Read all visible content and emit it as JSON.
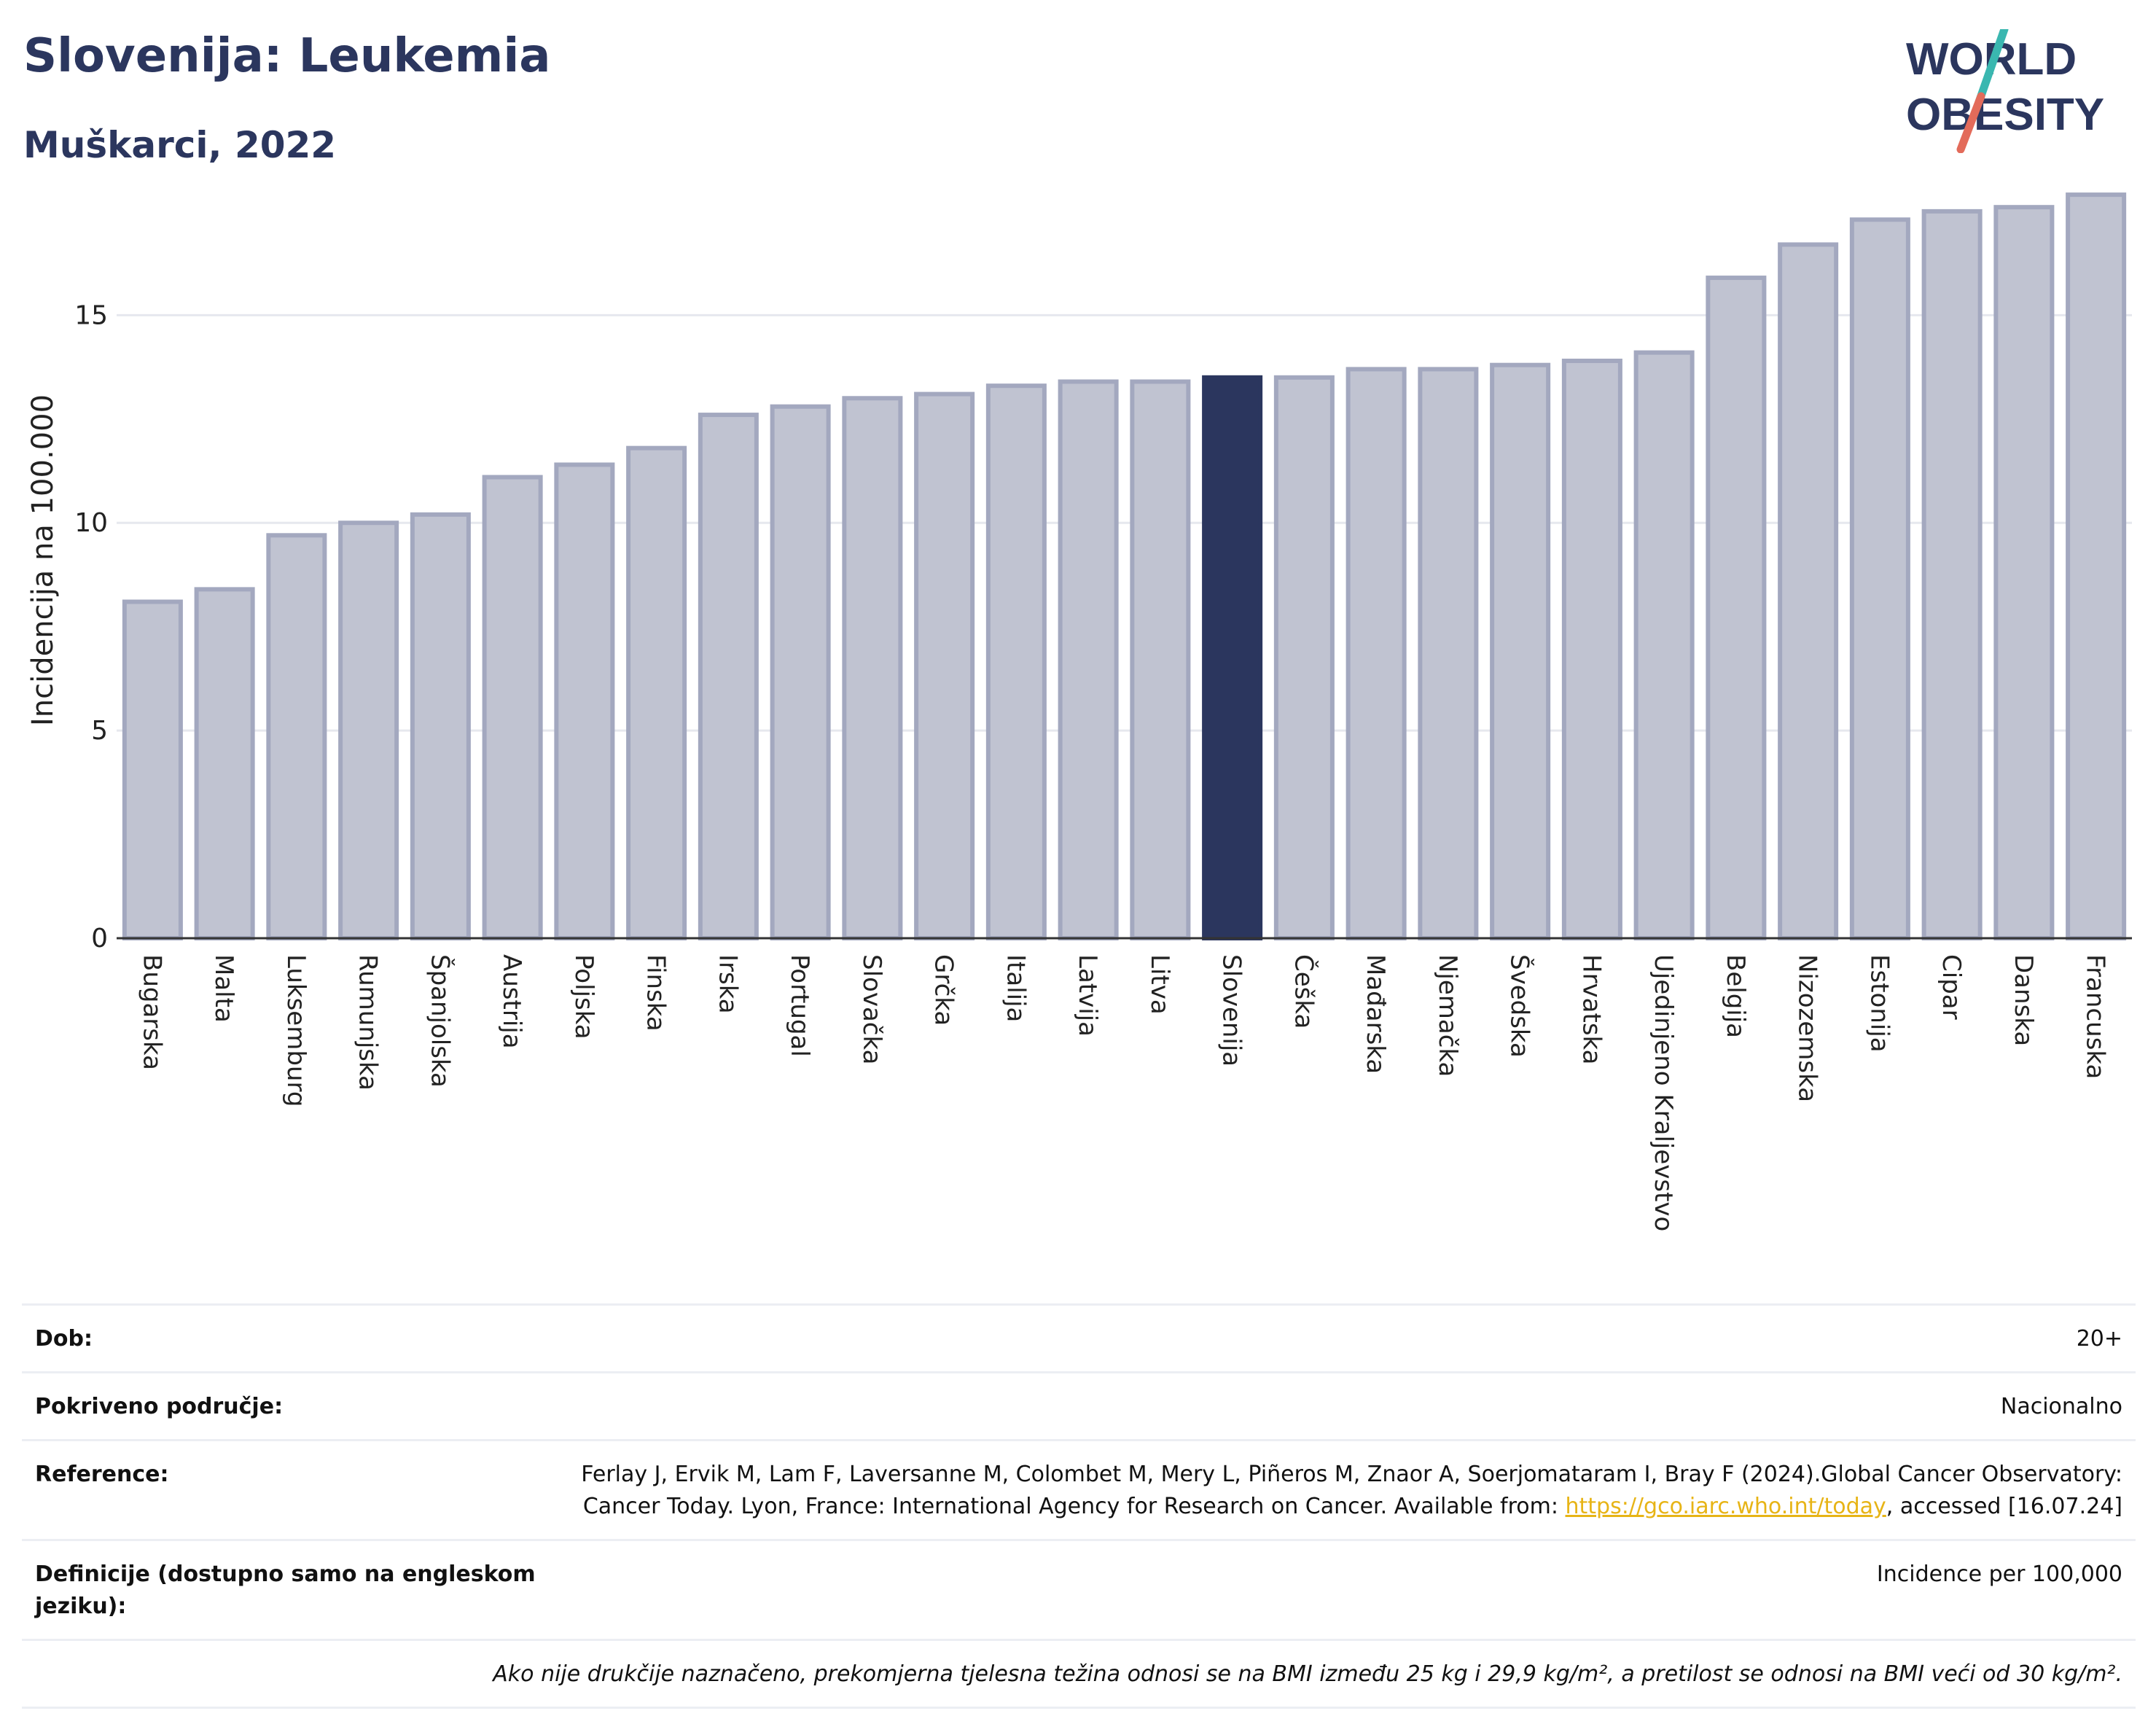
{
  "header": {
    "title": "Slovenija: Leukemia",
    "subtitle": "Muškarci, 2022"
  },
  "logo": {
    "text_line1": "WORLD",
    "text_line2": "OBESITY",
    "colors": {
      "text": "#2b365e",
      "slash_top": "#3ab7b0",
      "slash_bottom": "#e36b5a"
    }
  },
  "colors": {
    "bar": "#c0c3d1",
    "bar_border": "#a3a8bf",
    "highlight": "#2b365e",
    "grid": "#e6e8ee",
    "axis": "#333333"
  },
  "chart_data": {
    "type": "bar",
    "ylabel": "Incidencija na 100.000",
    "ylim": [
      0,
      18.2
    ],
    "yticks": [
      0,
      5,
      10,
      15
    ],
    "grid": true,
    "highlight": "Slovenija",
    "categories": [
      "Bugarska",
      "Malta",
      "Luksemburg",
      "Rumunjska",
      "Španjolska",
      "Austrija",
      "Poljska",
      "Finska",
      "Irska",
      "Portugal",
      "Slovačka",
      "Grčka",
      "Italija",
      "Latvija",
      "Litva",
      "Slovenija",
      "Češka",
      "Mađarska",
      "Njemačka",
      "Švedska",
      "Hrvatska",
      "Ujedinjeno Kraljevstvo",
      "Belgija",
      "Nizozemska",
      "Estonija",
      "Cipar",
      "Danska",
      "Francuska"
    ],
    "values": [
      8.1,
      8.4,
      9.7,
      10.0,
      10.2,
      11.1,
      11.4,
      11.8,
      12.6,
      12.8,
      13.0,
      13.1,
      13.3,
      13.4,
      13.4,
      13.5,
      13.5,
      13.7,
      13.7,
      13.8,
      13.9,
      14.1,
      15.9,
      16.7,
      17.3,
      17.5,
      17.6,
      17.9
    ]
  },
  "metadata": {
    "rows": [
      {
        "label": "Dob:",
        "value": "20+"
      },
      {
        "label": "Pokriveno područje:",
        "value": "Nacionalno"
      }
    ],
    "reference": {
      "label": "Reference:",
      "text_before": "Ferlay J, Ervik M, Lam F, Laversanne M, Colombet M, Mery L, Piñeros M, Znaor A, Soerjomataram I, Bray F (2024).Global Cancer Observatory: Cancer Today. Lyon, France: International Agency for Research on Cancer. Available from: ",
      "link": "https://gco.iarc.who.int/today",
      "text_after": ", accessed [16.07.24]"
    },
    "definitions": {
      "label": "Definicije (dostupno samo na engleskom jeziku):",
      "value": "Incidence per 100,000"
    },
    "note": "Ako nije drukčije naznačeno, prekomjerna tjelesna težina odnosi se na BMI između 25 kg i 29,9 kg/m², a pretilost se odnosi na BMI veći od 30 kg/m²."
  }
}
